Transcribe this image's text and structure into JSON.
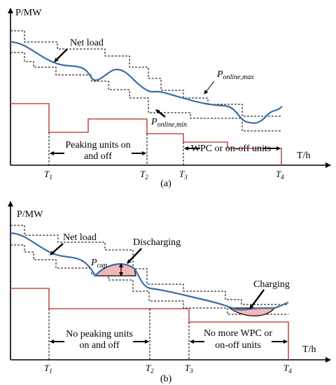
{
  "panel_a": {
    "ylabel": "P/MW",
    "xlabel": "T/h",
    "net_load_label": "Net load",
    "pmax_main": "P",
    "pmax_sub": "online,max",
    "pmin_main": "P",
    "pmin_sub": "online,min",
    "seg1_label_line1": "Peaking units on",
    "seg1_label_line2": "and off",
    "seg2_label": "WPC or on-off units",
    "t1": "T",
    "t1_sub": "1",
    "t2": "T",
    "t2_sub": "2",
    "t3": "T",
    "t3_sub": "3",
    "t4": "T",
    "t4_sub": "4",
    "caption": "(a)"
  },
  "panel_b": {
    "ylabel": "P/MW",
    "xlabel": "T/h",
    "net_load_label": "Net load",
    "discharging_label": "Discharging",
    "charging_label": "Charging",
    "pcap_main": "P",
    "pcap_sub": "cap",
    "seg1_label_line1": "No peaking units",
    "seg1_label_line2": "on and off",
    "seg2_label_line1": "No more WPC or",
    "seg2_label_line2": "on-off units",
    "t1": "T",
    "t1_sub": "1",
    "t2": "T",
    "t2_sub": "2",
    "t3": "T",
    "t3_sub": "3",
    "t4": "T",
    "t4_sub": "4",
    "caption": "(b)"
  },
  "colors": {
    "net_load": "#3a6ea5",
    "peaking_level": "#c0504d",
    "storage_fill": "#f2b8b8"
  }
}
